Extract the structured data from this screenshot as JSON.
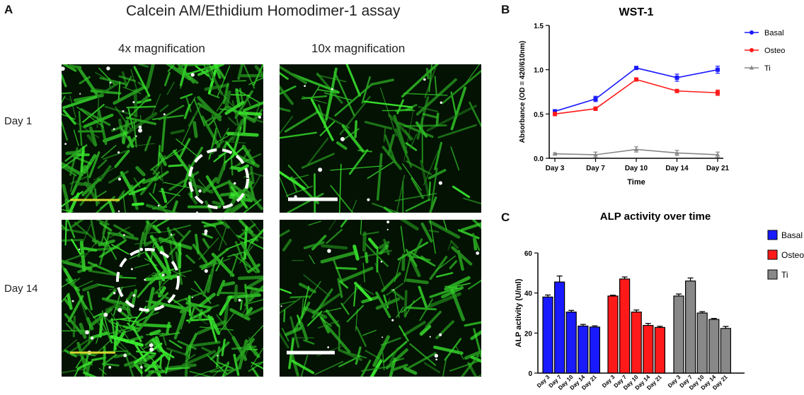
{
  "panel_a": {
    "letter": "A",
    "title": "Calcein AM/Ethidium Homodimer-1 assay",
    "col_4x": "4x magnification",
    "col_10x": "10x magnification",
    "row_day1": "Day 1",
    "row_day14": "Day 14",
    "colors": {
      "live": "#2ecc2e",
      "scale_4x": "#d6d630",
      "scale_10x": "#ffffff"
    }
  },
  "chart_data": [
    {
      "panel": "B",
      "type": "line",
      "title": "WST-1",
      "xlabel": "Time",
      "ylabel": "Absorbance (OD = 420/610nm)",
      "categories": [
        "Day 3",
        "Day 7",
        "Day 10",
        "Day 14",
        "Day 21"
      ],
      "ylim": [
        0,
        1.5
      ],
      "yticks": [
        "0.0",
        "0.5",
        "1.0",
        "1.5"
      ],
      "legend_position": "right",
      "series": [
        {
          "name": "Basal",
          "color": "#1a1aff",
          "values": [
            0.53,
            0.67,
            1.02,
            0.91,
            1.0
          ],
          "errors": [
            0.02,
            0.03,
            0.01,
            0.04,
            0.04
          ]
        },
        {
          "name": "Osteo",
          "color": "#ff1a1a",
          "values": [
            0.5,
            0.56,
            0.89,
            0.76,
            0.74
          ],
          "errors": [
            0.02,
            0.02,
            0.01,
            0.01,
            0.03
          ]
        },
        {
          "name": "Ti",
          "color": "#888888",
          "values": [
            0.05,
            0.04,
            0.1,
            0.06,
            0.04
          ],
          "errors": [
            0.01,
            0.03,
            0.03,
            0.03,
            0.03
          ]
        }
      ]
    },
    {
      "panel": "C",
      "type": "bar",
      "title": "ALP activity over time",
      "xlabel": "",
      "ylabel": "ALP activity (U/ml)",
      "categories": [
        "Day 3",
        "Day 7",
        "Day 10",
        "Day 14",
        "Day 21"
      ],
      "ylim": [
        0,
        60
      ],
      "yticks": [
        "0",
        "20",
        "40",
        "60"
      ],
      "legend_position": "right",
      "series": [
        {
          "name": "Basal",
          "color": "#1a1aff",
          "values": [
            38,
            45.5,
            30.5,
            23.5,
            23
          ],
          "errors": [
            1,
            3,
            0.8,
            0.8,
            0.6
          ]
        },
        {
          "name": "Osteo",
          "color": "#ff1a1a",
          "values": [
            38.5,
            47,
            30.5,
            23.8,
            22.8
          ],
          "errors": [
            0.4,
            1,
            1,
            1,
            0.6
          ]
        },
        {
          "name": "Ti",
          "color": "#888888",
          "values": [
            38.5,
            46,
            30,
            26.8,
            22.3
          ],
          "errors": [
            1,
            1.5,
            0.7,
            0.5,
            1
          ]
        }
      ]
    }
  ]
}
